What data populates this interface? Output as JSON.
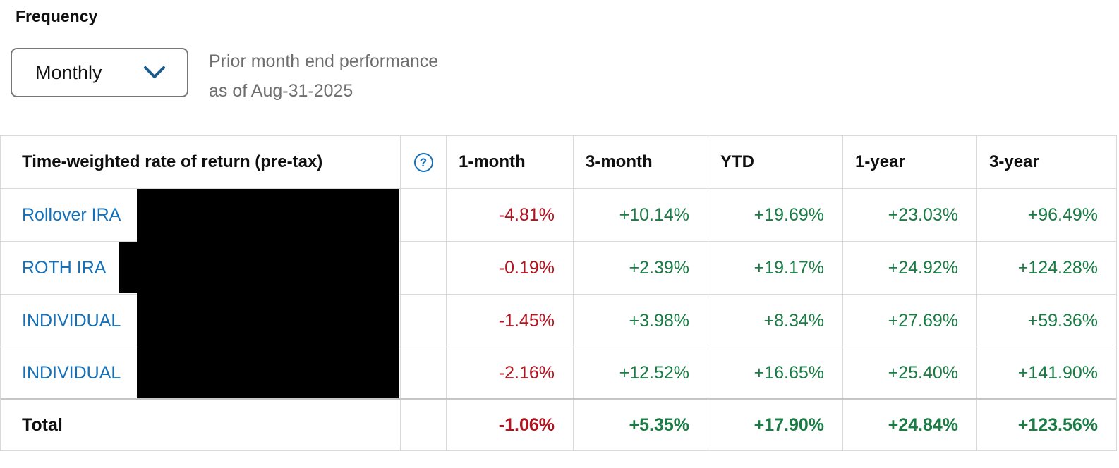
{
  "colors": {
    "link": "#1470b8",
    "positive": "#1a7c45",
    "negative": "#b3131f",
    "chevron": "#1a5c90",
    "border": "#d9d9d9",
    "total_border": "#c6c6c6"
  },
  "frequency": {
    "label": "Frequency",
    "value": "Monthly"
  },
  "subtitle": {
    "line1": "Prior month end performance",
    "line2": "as of Aug-31-2025"
  },
  "table": {
    "first_header": "Time-weighted rate of return (pre-tax)",
    "help_glyph": "?",
    "columns": [
      "1-month",
      "3-month",
      "YTD",
      "1-year",
      "3-year"
    ],
    "rows": [
      {
        "account": "Rollover IRA",
        "values": [
          "-4.81%",
          "+10.14%",
          "+19.69%",
          "+23.03%",
          "+96.49%"
        ]
      },
      {
        "account": "ROTH IRA",
        "values": [
          "-0.19%",
          "+2.39%",
          "+19.17%",
          "+24.92%",
          "+124.28%"
        ]
      },
      {
        "account": "INDIVIDUAL",
        "values": [
          "-1.45%",
          "+3.98%",
          "+8.34%",
          "+27.69%",
          "+59.36%"
        ]
      },
      {
        "account": "INDIVIDUAL",
        "values": [
          "-2.16%",
          "+12.52%",
          "+16.65%",
          "+25.40%",
          "+141.90%"
        ]
      }
    ],
    "total": {
      "label": "Total",
      "values": [
        "-1.06%",
        "+5.35%",
        "+17.90%",
        "+24.84%",
        "+123.56%"
      ]
    }
  }
}
